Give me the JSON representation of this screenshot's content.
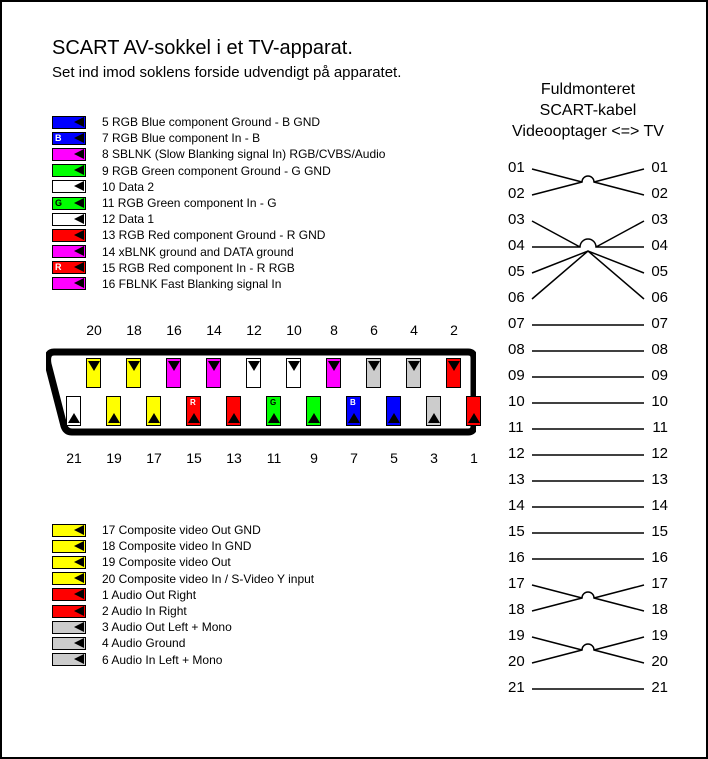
{
  "title": "SCART AV-sokkel i et TV-apparat.",
  "subtitle": "Set ind imod soklens forside udvendigt på apparatet.",
  "colors": {
    "blue": "#0000ff",
    "magenta": "#ff00ff",
    "green": "#00ff00",
    "white": "#ffffff",
    "red": "#ff0000",
    "grey": "#cccccc",
    "yellow": "#ffff00",
    "black": "#000000"
  },
  "legend_top": [
    {
      "color": "blue",
      "letter": "",
      "text": "5 RGB Blue component Ground - B GND"
    },
    {
      "color": "blue",
      "letter": "B",
      "text": "7 RGB Blue component In - B"
    },
    {
      "color": "magenta",
      "letter": "",
      "text": "8 SBLNK (Slow Blanking signal In) RGB/CVBS/Audio"
    },
    {
      "color": "green",
      "letter": "",
      "text": "9 RGB Green component Ground - G GND"
    },
    {
      "color": "white",
      "letter": "",
      "text": "10 Data 2"
    },
    {
      "color": "green",
      "letter": "G",
      "text": "11 RGB Green component In - G"
    },
    {
      "color": "white",
      "letter": "",
      "text": "12 Data 1"
    },
    {
      "color": "red",
      "letter": "",
      "text": "13 RGB Red component Ground - R GND"
    },
    {
      "color": "magenta",
      "letter": "",
      "text": "14 xBLNK ground and DATA ground"
    },
    {
      "color": "red",
      "letter": "R",
      "text": "15 RGB Red component In - R RGB"
    },
    {
      "color": "magenta",
      "letter": "",
      "text": "16 FBLNK Fast Blanking signal In"
    }
  ],
  "legend_bottom": [
    {
      "color": "yellow",
      "letter": "",
      "text": "17 Composite video Out GND"
    },
    {
      "color": "yellow",
      "letter": "",
      "text": "18 Composite video In GND"
    },
    {
      "color": "yellow",
      "letter": "",
      "text": "19 Composite video Out"
    },
    {
      "color": "yellow",
      "letter": "",
      "text": "20 Composite video In / S-Video Y input"
    },
    {
      "color": "red",
      "letter": "",
      "text": "1 Audio Out Right"
    },
    {
      "color": "red",
      "letter": "",
      "text": "2 Audio In Right"
    },
    {
      "color": "grey",
      "letter": "",
      "text": "3 Audio Out Left + Mono"
    },
    {
      "color": "grey",
      "letter": "",
      "text": "4 Audio Ground"
    },
    {
      "color": "grey",
      "letter": "",
      "text": "6 Audio In Left + Mono"
    }
  ],
  "connector": {
    "top_labels": [
      "20",
      "18",
      "16",
      "14",
      "12",
      "10",
      "8",
      "6",
      "4",
      "2"
    ],
    "bot_labels": [
      "21",
      "19",
      "17",
      "15",
      "13",
      "11",
      "9",
      "7",
      "5",
      "3",
      "1"
    ],
    "top_pins": [
      {
        "n": 20,
        "color": "yellow"
      },
      {
        "n": 18,
        "color": "yellow"
      },
      {
        "n": 16,
        "color": "magenta"
      },
      {
        "n": 14,
        "color": "magenta"
      },
      {
        "n": 12,
        "color": "white"
      },
      {
        "n": 10,
        "color": "white"
      },
      {
        "n": 8,
        "color": "magenta"
      },
      {
        "n": 6,
        "color": "grey"
      },
      {
        "n": 4,
        "color": "grey"
      },
      {
        "n": 2,
        "color": "red"
      }
    ],
    "bot_pins": [
      {
        "n": 21,
        "color": "white"
      },
      {
        "n": 19,
        "color": "yellow"
      },
      {
        "n": 17,
        "color": "yellow"
      },
      {
        "n": 15,
        "color": "red",
        "letter": "R"
      },
      {
        "n": 13,
        "color": "red"
      },
      {
        "n": 11,
        "color": "green",
        "letter": "G"
      },
      {
        "n": 9,
        "color": "green"
      },
      {
        "n": 7,
        "color": "blue",
        "letter": "B"
      },
      {
        "n": 5,
        "color": "blue"
      },
      {
        "n": 3,
        "color": "grey"
      },
      {
        "n": 1,
        "color": "red"
      }
    ]
  },
  "cable": {
    "title_l1": "Fuldmonteret",
    "title_l2": "SCART-kabel",
    "title_l3": "Videooptager <=> TV",
    "rows": [
      {
        "l": "01",
        "r": "01",
        "type": "cross",
        "pair": 2
      },
      {
        "l": "02",
        "r": "02",
        "type": "cross",
        "pair": 1
      },
      {
        "l": "03",
        "r": "03",
        "type": "cross3",
        "pair": "a"
      },
      {
        "l": "04",
        "r": "04",
        "type": "straight3"
      },
      {
        "l": "05",
        "r": "05",
        "type": "cross3",
        "pair": "b"
      },
      {
        "l": "06",
        "r": "06",
        "type": "cross3",
        "pair": "c"
      },
      {
        "l": "07",
        "r": "07",
        "type": "straight"
      },
      {
        "l": "08",
        "r": "08",
        "type": "straight"
      },
      {
        "l": "09",
        "r": "09",
        "type": "straight"
      },
      {
        "l": "10",
        "r": "10",
        "type": "straight"
      },
      {
        "l": "11",
        "r": "11",
        "type": "straight"
      },
      {
        "l": "12",
        "r": "12",
        "type": "straight"
      },
      {
        "l": "13",
        "r": "13",
        "type": "straight"
      },
      {
        "l": "14",
        "r": "14",
        "type": "straight"
      },
      {
        "l": "15",
        "r": "15",
        "type": "straight"
      },
      {
        "l": "16",
        "r": "16",
        "type": "straight"
      },
      {
        "l": "17",
        "r": "17",
        "type": "cross",
        "pair": 18
      },
      {
        "l": "18",
        "r": "18",
        "type": "cross",
        "pair": 17
      },
      {
        "l": "19",
        "r": "19",
        "type": "cross",
        "pair": 20
      },
      {
        "l": "20",
        "r": "20",
        "type": "cross",
        "pair": 19
      },
      {
        "l": "21",
        "r": "21",
        "type": "straight"
      }
    ]
  }
}
